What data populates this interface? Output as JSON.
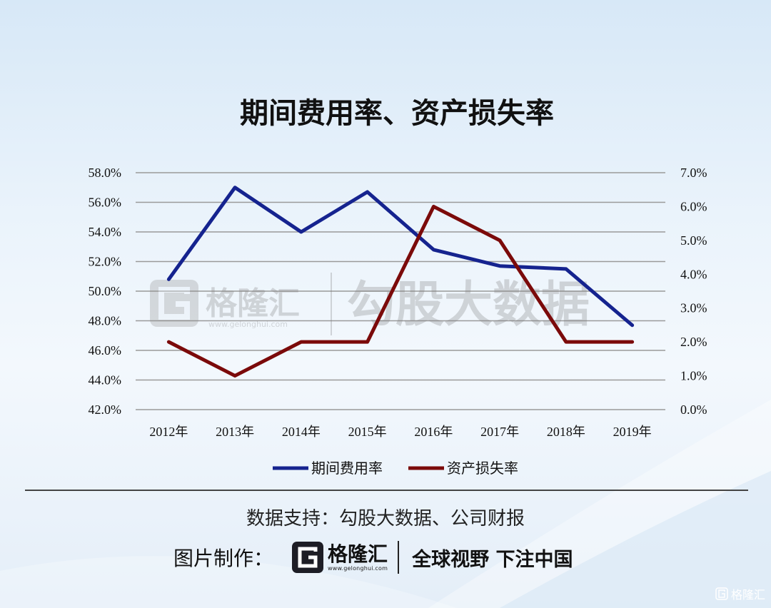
{
  "chart_data": {
    "type": "line",
    "title": "期间费用率、资产损失率",
    "categories": [
      "2012年",
      "2013年",
      "2014年",
      "2015年",
      "2016年",
      "2017年",
      "2018年",
      "2019年"
    ],
    "y_left": {
      "ylim": [
        42,
        58
      ],
      "ticks": [
        "58.0%",
        "56.0%",
        "54.0%",
        "52.0%",
        "50.0%",
        "48.0%",
        "46.0%",
        "44.0%",
        "42.0%"
      ]
    },
    "y_right": {
      "ylim": [
        0,
        7
      ],
      "ticks": [
        "7.0%",
        "6.0%",
        "5.0%",
        "4.0%",
        "3.0%",
        "2.0%",
        "1.0%",
        "0.0%"
      ]
    },
    "grid": true,
    "legend_position": "bottom",
    "series": [
      {
        "name": "期间费用率",
        "axis": "left",
        "color": "#15238f",
        "values": [
          50.8,
          57.0,
          54.0,
          56.7,
          52.8,
          51.7,
          51.5,
          47.7
        ]
      },
      {
        "name": "资产损失率",
        "axis": "right",
        "color": "#7b0a0a",
        "values": [
          2.0,
          1.0,
          2.0,
          2.0,
          6.0,
          5.0,
          2.0,
          2.0
        ]
      }
    ]
  },
  "watermark": {
    "brand": "格隆汇",
    "url": "www.gelonghui.com",
    "product": "勾股大数据"
  },
  "footer": {
    "source": "数据支持：勾股大数据、公司财报",
    "credit_label": "图片制作：",
    "logo_text": "格隆汇",
    "logo_url": "www.gelonghui.com",
    "slogan": "全球视野 下注中国",
    "corner_mark": "格隆汇"
  }
}
